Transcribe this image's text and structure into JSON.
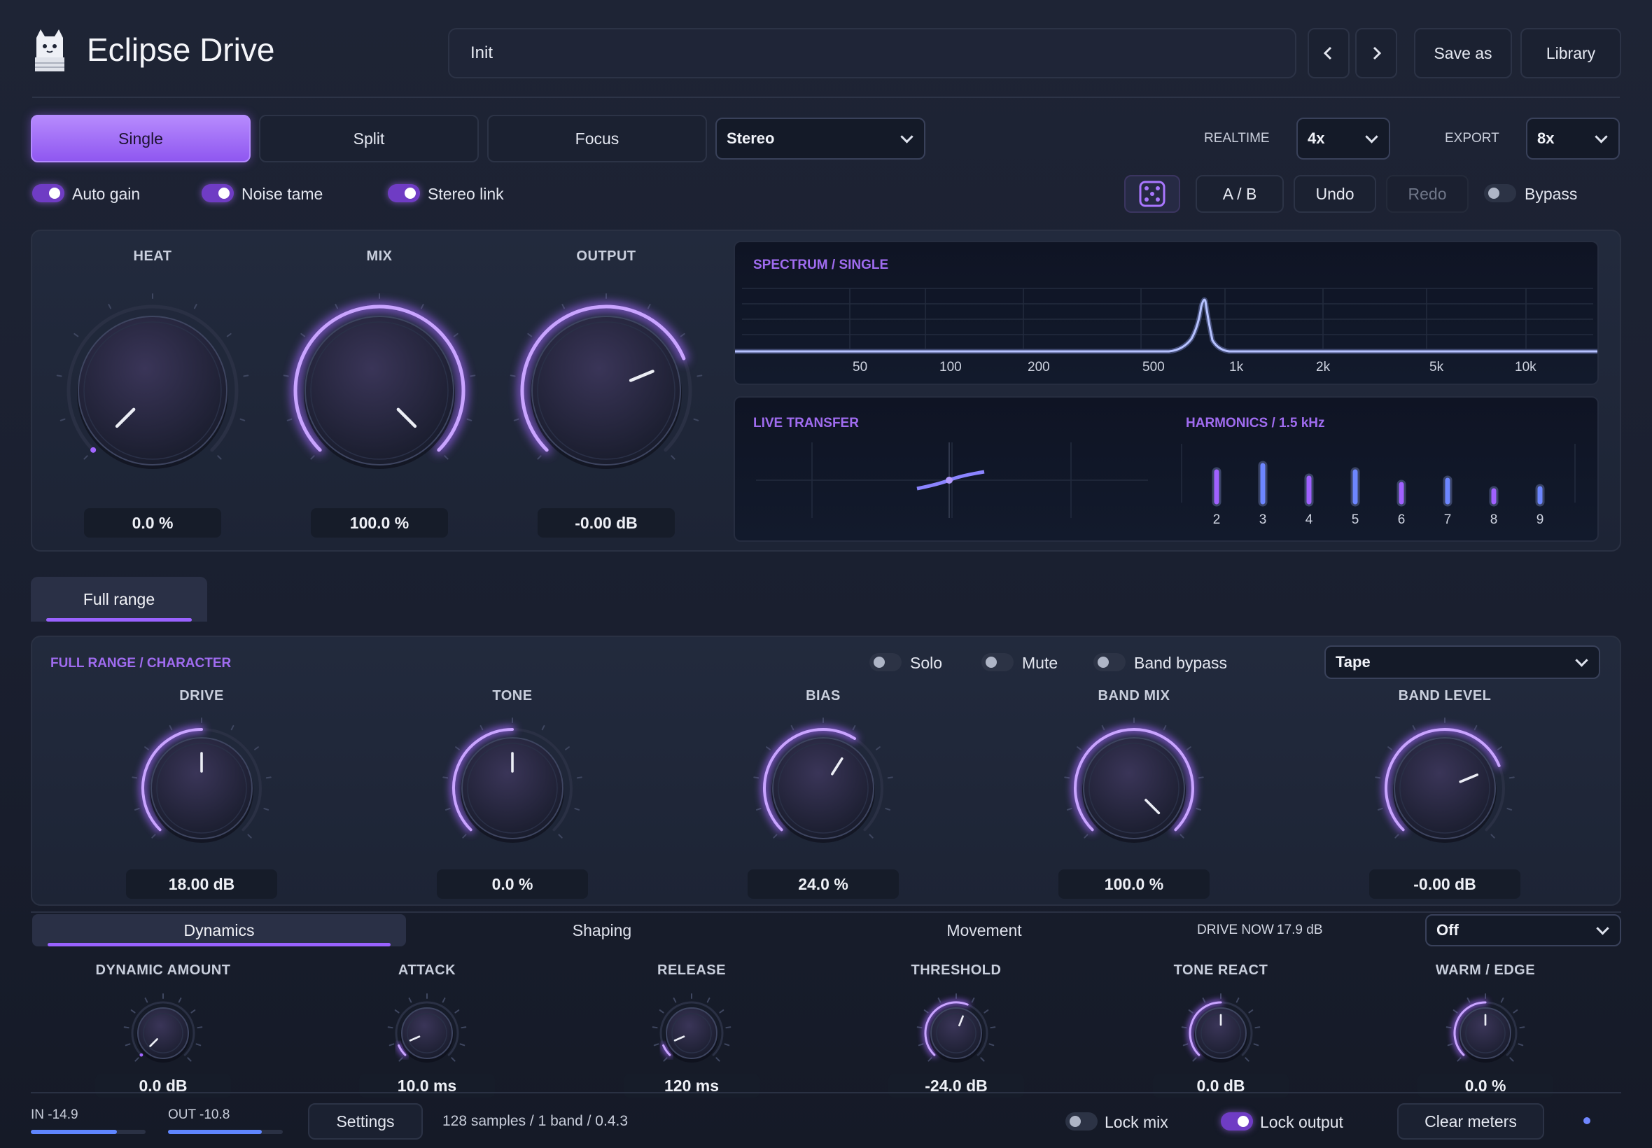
{
  "app": {
    "title": "Eclipse Drive"
  },
  "header": {
    "preset_name": "Init",
    "save_as_label": "Save as",
    "library_label": "Library"
  },
  "modes": {
    "single": "Single",
    "split": "Split",
    "focus": "Focus",
    "selected": "Single",
    "channel": "Stereo"
  },
  "quality": {
    "realtime_label": "REALTIME",
    "realtime_value": "4x",
    "export_label": "EXPORT",
    "export_value": "8x"
  },
  "toggles": {
    "auto_gain": {
      "label": "Auto gain",
      "on": true
    },
    "noise_tame": {
      "label": "Noise tame",
      "on": true
    },
    "stereo_link": {
      "label": "Stereo link",
      "on": true
    }
  },
  "actions": {
    "ab": "A / B",
    "undo": "Undo",
    "redo": "Redo",
    "bypass": {
      "label": "Bypass",
      "on": false
    }
  },
  "main_knobs": [
    {
      "label": "HEAT",
      "value": "0.0 %",
      "level": 0.0
    },
    {
      "label": "MIX",
      "value": "100.0 %",
      "level": 1.0
    },
    {
      "label": "OUTPUT",
      "value": "-0.00 dB",
      "level": 0.75
    }
  ],
  "spectrum": {
    "title": "SPECTRUM / SINGLE",
    "freq_labels": [
      "50",
      "100",
      "200",
      "500",
      "1k",
      "2k",
      "5k",
      "10k"
    ]
  },
  "transfer": {
    "title": "LIVE TRANSFER"
  },
  "harmonics": {
    "title": "HARMONICS / 1.5 kHz",
    "bars": [
      {
        "n": "2",
        "level": 0.65
      },
      {
        "n": "3",
        "level": 0.8
      },
      {
        "n": "4",
        "level": 0.5
      },
      {
        "n": "5",
        "level": 0.65
      },
      {
        "n": "6",
        "level": 0.35
      },
      {
        "n": "7",
        "level": 0.45
      },
      {
        "n": "8",
        "level": 0.2
      },
      {
        "n": "9",
        "level": 0.25
      }
    ]
  },
  "band": {
    "tab": "Full range",
    "title": "FULL RANGE / CHARACTER",
    "solo": "Solo",
    "mute": "Mute",
    "band_bypass": "Band bypass",
    "character": "Tape",
    "knobs": [
      {
        "label": "DRIVE",
        "value": "18.00 dB",
        "level": 0.5
      },
      {
        "label": "TONE",
        "value": "0.0 %",
        "level": 0.5
      },
      {
        "label": "BIAS",
        "value": "24.0 %",
        "level": 0.62
      },
      {
        "label": "BAND MIX",
        "value": "100.0 %",
        "level": 1.0
      },
      {
        "label": "BAND LEVEL",
        "value": "-0.00 dB",
        "level": 0.75
      }
    ]
  },
  "dynamics": {
    "tabs": [
      "Dynamics",
      "Shaping",
      "Movement"
    ],
    "drive_now_label": "DRIVE NOW",
    "drive_now_value": "17.9 dB",
    "mode": "Off",
    "knobs": [
      {
        "label": "DYNAMIC AMOUNT",
        "value": "0.0 dB",
        "level": 0.0
      },
      {
        "label": "ATTACK",
        "value": "10.0 ms",
        "level": 0.08
      },
      {
        "label": "RELEASE",
        "value": "120 ms",
        "level": 0.08
      },
      {
        "label": "THRESHOLD",
        "value": "-24.0 dB",
        "level": 0.58
      },
      {
        "label": "TONE REACT",
        "value": "0.0 dB",
        "level": 0.5
      },
      {
        "label": "WARM / EDGE",
        "value": "0.0 %",
        "level": 0.5
      }
    ]
  },
  "footer": {
    "in_label": "IN -14.9",
    "in_level": 0.75,
    "out_label": "OUT -10.8",
    "out_level": 0.82,
    "settings": "Settings",
    "info": "128 samples / 1 band / 0.4.3",
    "lock_mix": {
      "label": "Lock mix",
      "on": false
    },
    "lock_output": {
      "label": "Lock output",
      "on": true
    },
    "clear_meters": "Clear meters"
  },
  "colors": {
    "accent": "#a066ff",
    "bg": "#1a1f2f",
    "panel": "#212839"
  }
}
